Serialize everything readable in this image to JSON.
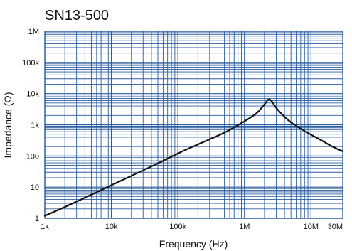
{
  "chart_data": {
    "type": "line",
    "title": "SN13-500",
    "xlabel": "Frequency (Hz)",
    "ylabel": "Impedance (Ω)",
    "x_scale": "log",
    "y_scale": "log",
    "xlim": [
      1000,
      30000000
    ],
    "ylim": [
      1,
      1000000
    ],
    "grid": true,
    "x_ticks": [
      {
        "value": 1000,
        "label": "1k"
      },
      {
        "value": 10000,
        "label": "10k"
      },
      {
        "value": 100000,
        "label": "100k"
      },
      {
        "value": 1000000,
        "label": "1M"
      },
      {
        "value": 10000000,
        "label": "10M"
      },
      {
        "value": 30000000,
        "label": "30M"
      }
    ],
    "y_ticks": [
      {
        "value": 1,
        "label": "1"
      },
      {
        "value": 10,
        "label": "10"
      },
      {
        "value": 100,
        "label": "100"
      },
      {
        "value": 1000,
        "label": "1k"
      },
      {
        "value": 10000,
        "label": "10k"
      },
      {
        "value": 100000,
        "label": "100k"
      },
      {
        "value": 1000000,
        "label": "1M"
      }
    ],
    "series": [
      {
        "points": [
          [
            1000,
            1.2
          ],
          [
            2000,
            2.3
          ],
          [
            5000,
            5.7
          ],
          [
            10000,
            11.5
          ],
          [
            20000,
            23
          ],
          [
            50000,
            58
          ],
          [
            100000,
            120
          ],
          [
            200000,
            235
          ],
          [
            500000,
            560
          ],
          [
            1000000,
            1300
          ],
          [
            1500000,
            2300
          ],
          [
            2000000,
            4500
          ],
          [
            2300000,
            6500
          ],
          [
            2600000,
            5500
          ],
          [
            3000000,
            3500
          ],
          [
            4000000,
            1800
          ],
          [
            5000000,
            1200
          ],
          [
            7000000,
            750
          ],
          [
            10000000,
            480
          ],
          [
            15000000,
            300
          ],
          [
            20000000,
            210
          ],
          [
            30000000,
            140
          ]
        ]
      }
    ],
    "colors": {
      "grid": "#2a5d9f",
      "line": "#111111",
      "frame": "#1f4f8f"
    }
  }
}
